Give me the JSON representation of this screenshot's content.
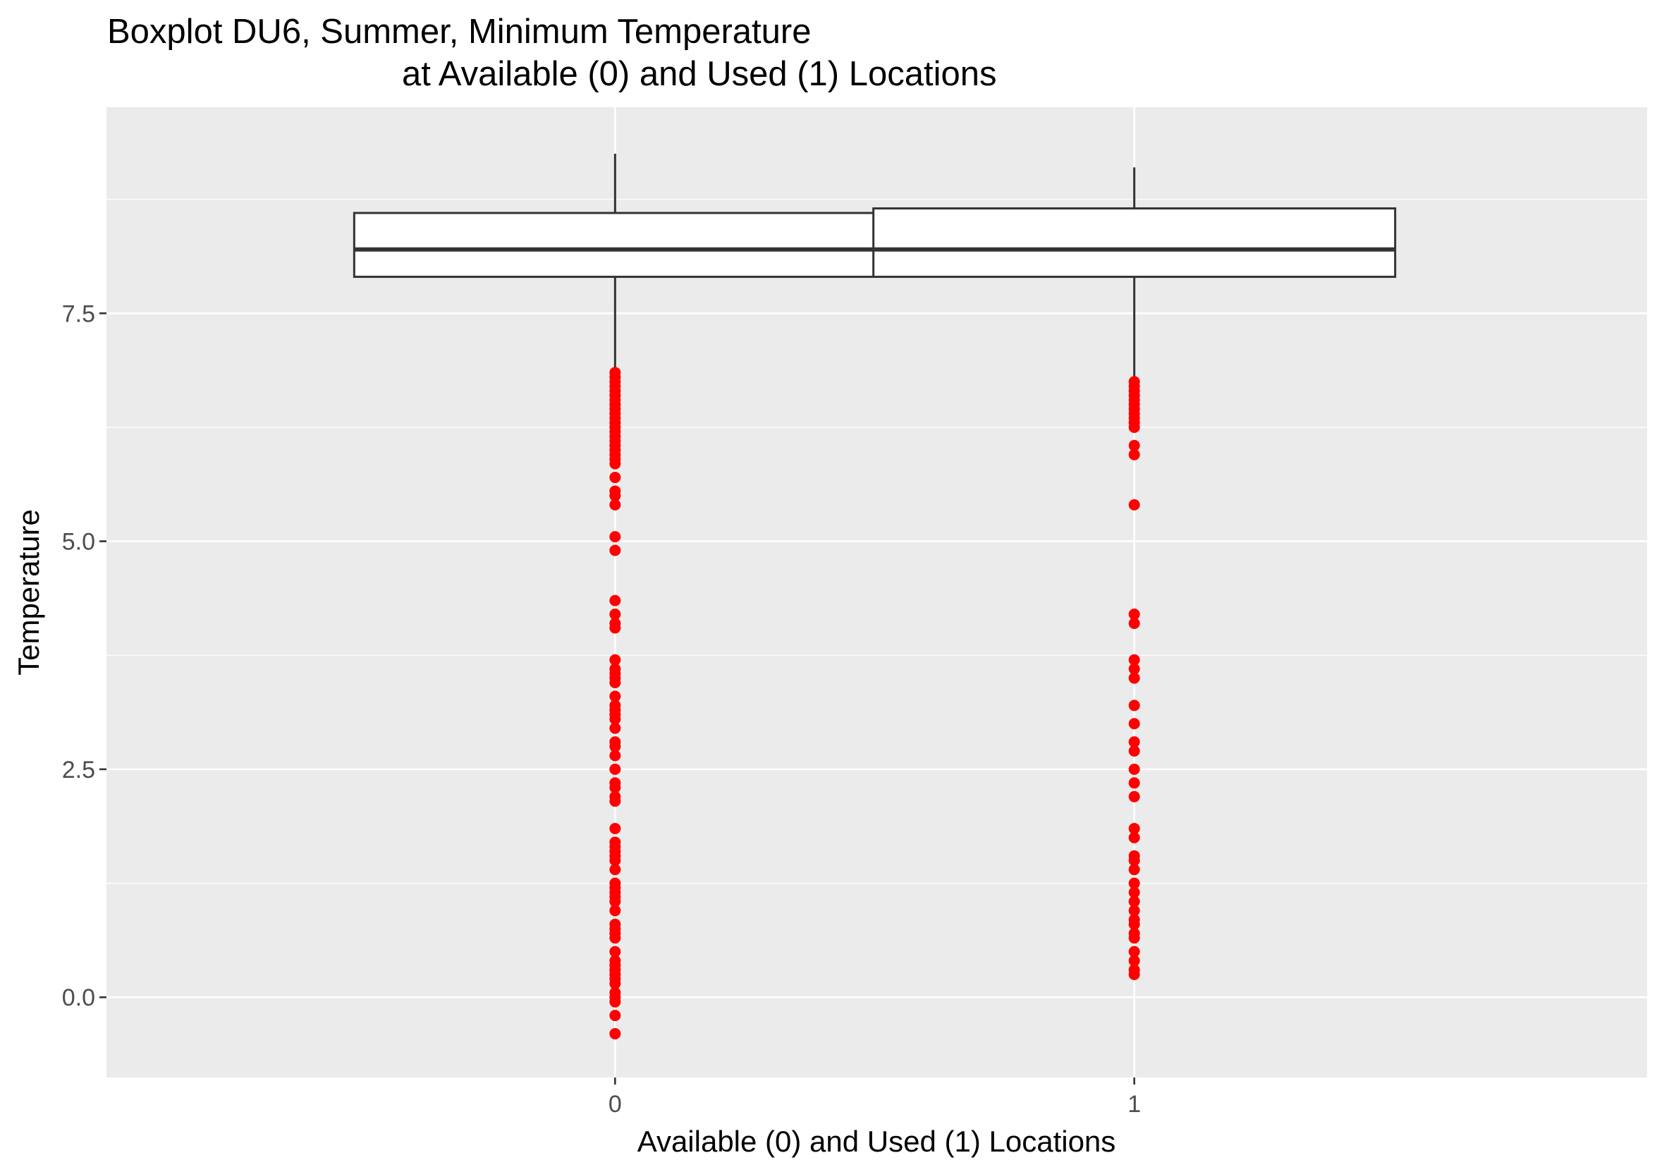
{
  "chart_data": {
    "type": "boxplot",
    "title": [
      "Boxplot DU6, Summer, Minimum Temperature",
      "at Available (0) and Used (1) Locations"
    ],
    "xlabel": "Available (0) and Used (1) Locations",
    "ylabel": "Temperature",
    "ylim": [
      -0.88,
      9.76
    ],
    "y_ticks": [
      0.0,
      2.5,
      5.0,
      7.5
    ],
    "y_tick_labels": [
      "0.0",
      "2.5",
      "5.0",
      "7.5"
    ],
    "grid": true,
    "background": "#EBEBEB",
    "gridline_color": "#FFFFFF",
    "box_fill": "#FFFFFF",
    "box_stroke": "#333333",
    "outlier_color": "#FF0000",
    "boxes": [
      {
        "category": "0",
        "whisker_low": 6.9,
        "q1": 7.9,
        "median": 8.2,
        "q3": 8.6,
        "whisker_high": 9.25,
        "outliers": [
          6.85,
          6.8,
          6.75,
          6.7,
          6.65,
          6.6,
          6.55,
          6.5,
          6.45,
          6.4,
          6.35,
          6.3,
          6.25,
          6.2,
          6.15,
          6.1,
          6.05,
          6.0,
          5.95,
          5.9,
          5.85,
          5.7,
          5.55,
          5.5,
          5.4,
          5.05,
          4.9,
          4.35,
          4.2,
          4.1,
          4.05,
          3.7,
          3.6,
          3.55,
          3.5,
          3.45,
          3.3,
          3.2,
          3.15,
          3.1,
          3.05,
          2.95,
          2.8,
          2.75,
          2.65,
          2.5,
          2.35,
          2.3,
          2.2,
          2.15,
          1.85,
          1.7,
          1.65,
          1.6,
          1.55,
          1.5,
          1.4,
          1.25,
          1.2,
          1.15,
          1.1,
          1.05,
          0.95,
          0.8,
          0.75,
          0.7,
          0.65,
          0.5,
          0.4,
          0.35,
          0.3,
          0.25,
          0.2,
          0.15,
          0.05,
          0.0,
          -0.05,
          -0.2,
          -0.4
        ]
      },
      {
        "category": "1",
        "whisker_low": 6.8,
        "q1": 7.9,
        "median": 8.2,
        "q3": 8.65,
        "whisker_high": 9.1,
        "outliers": [
          6.75,
          6.7,
          6.65,
          6.6,
          6.55,
          6.5,
          6.45,
          6.4,
          6.35,
          6.3,
          6.25,
          6.05,
          5.95,
          5.4,
          4.2,
          4.1,
          3.7,
          3.6,
          3.5,
          3.2,
          3.0,
          2.8,
          2.7,
          2.5,
          2.35,
          2.2,
          1.85,
          1.75,
          1.55,
          1.5,
          1.4,
          1.25,
          1.15,
          1.05,
          0.95,
          0.85,
          0.8,
          0.7,
          0.65,
          0.5,
          0.4,
          0.3,
          0.25
        ]
      }
    ]
  }
}
